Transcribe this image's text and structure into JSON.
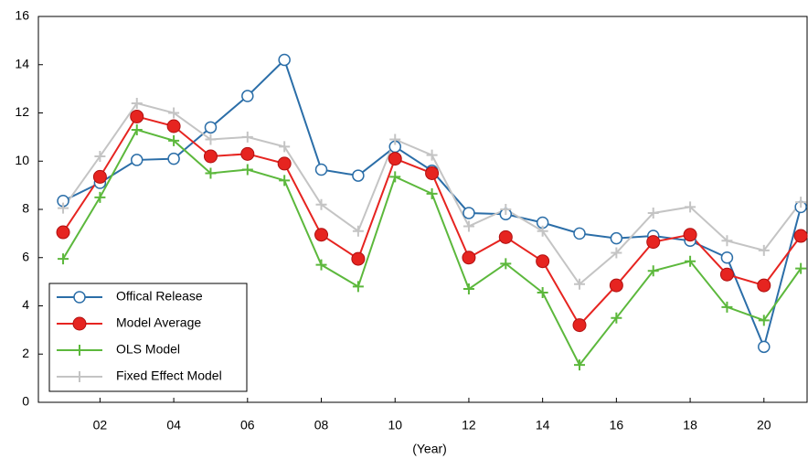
{
  "chart_data": {
    "type": "line",
    "xlabel": "(Year)",
    "x": [
      1,
      2,
      3,
      4,
      5,
      6,
      7,
      8,
      9,
      10,
      11,
      12,
      13,
      14,
      15,
      16,
      17,
      18,
      19,
      20,
      21
    ],
    "xlim": [
      0.33,
      21.17
    ],
    "xticks": [
      {
        "value": 2,
        "label": "02"
      },
      {
        "value": 4,
        "label": "04"
      },
      {
        "value": 6,
        "label": "06"
      },
      {
        "value": 8,
        "label": "08"
      },
      {
        "value": 10,
        "label": "10"
      },
      {
        "value": 12,
        "label": "12"
      },
      {
        "value": 14,
        "label": "14"
      },
      {
        "value": 16,
        "label": "16"
      },
      {
        "value": 18,
        "label": "18"
      },
      {
        "value": 20,
        "label": "20"
      }
    ],
    "ylim": [
      0,
      16
    ],
    "yticks": [
      0,
      2,
      4,
      6,
      8,
      10,
      12,
      14,
      16
    ],
    "legend": "lower left",
    "series": [
      {
        "name": "Offical Release",
        "color": "#2b6ea8",
        "marker": "open-circle",
        "values": [
          8.35,
          9.1,
          10.05,
          10.1,
          11.4,
          12.7,
          14.2,
          9.65,
          9.4,
          10.6,
          9.6,
          7.85,
          7.8,
          7.45,
          7.0,
          6.8,
          6.9,
          6.7,
          6.0,
          2.3,
          8.1
        ]
      },
      {
        "name": "Model Average",
        "color": "#e62420",
        "marker": "circle",
        "values": [
          7.05,
          9.35,
          11.85,
          11.45,
          10.2,
          10.3,
          9.9,
          6.95,
          5.95,
          10.1,
          9.5,
          6.0,
          6.85,
          5.85,
          3.2,
          4.85,
          6.65,
          6.95,
          5.3,
          4.85,
          6.9
        ]
      },
      {
        "name": "OLS Model",
        "color": "#5cb83c",
        "marker": "plus",
        "values": [
          5.95,
          8.5,
          11.3,
          10.85,
          9.5,
          9.65,
          9.2,
          5.7,
          4.8,
          9.35,
          8.65,
          4.7,
          5.75,
          4.55,
          1.55,
          3.5,
          5.45,
          5.85,
          3.95,
          3.4,
          5.55
        ]
      },
      {
        "name": "Fixed Effect Model",
        "color": "#c4c4c4",
        "marker": "plus",
        "values": [
          8.05,
          10.2,
          12.4,
          12.0,
          10.9,
          11.0,
          10.6,
          8.2,
          7.1,
          10.9,
          10.25,
          7.3,
          8.0,
          7.1,
          4.9,
          6.2,
          7.85,
          8.1,
          6.7,
          6.3,
          8.3
        ]
      }
    ]
  }
}
